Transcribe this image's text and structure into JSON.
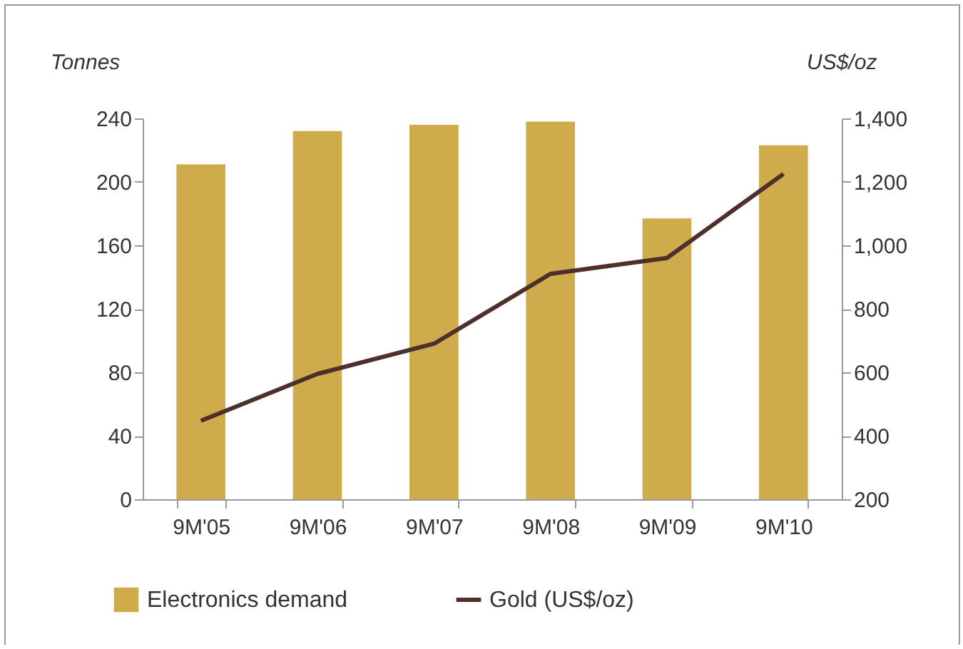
{
  "chart_data": {
    "type": "bar",
    "ylabel": "Tonnes",
    "y2label": "US$/oz",
    "categories": [
      "9M'05",
      "9M'06",
      "9M'07",
      "9M'08",
      "9M'09",
      "9M'10"
    ],
    "series": [
      {
        "name": "Electronics demand",
        "color": "#cfab4b",
        "values": [
          211,
          232,
          236,
          238,
          177,
          223
        ]
      },
      {
        "name": "Gold (US$/oz)",
        "type": "line",
        "axis": "y2",
        "color": "#4e2f2c",
        "values": [
          447,
          595,
          690,
          910,
          960,
          1225
        ]
      }
    ],
    "ylim": [
      0,
      240
    ],
    "yticks": [
      0,
      40,
      80,
      120,
      160,
      200,
      240
    ],
    "y2lim": [
      200,
      1400
    ],
    "y2ticks": [
      200,
      400,
      600,
      800,
      {
        "value": 1000,
        "label": "1,000"
      },
      {
        "value": 1200,
        "label": "1,200"
      },
      {
        "value": 1400,
        "label": "1,400"
      }
    ],
    "grid": false,
    "legend": "bottom"
  }
}
